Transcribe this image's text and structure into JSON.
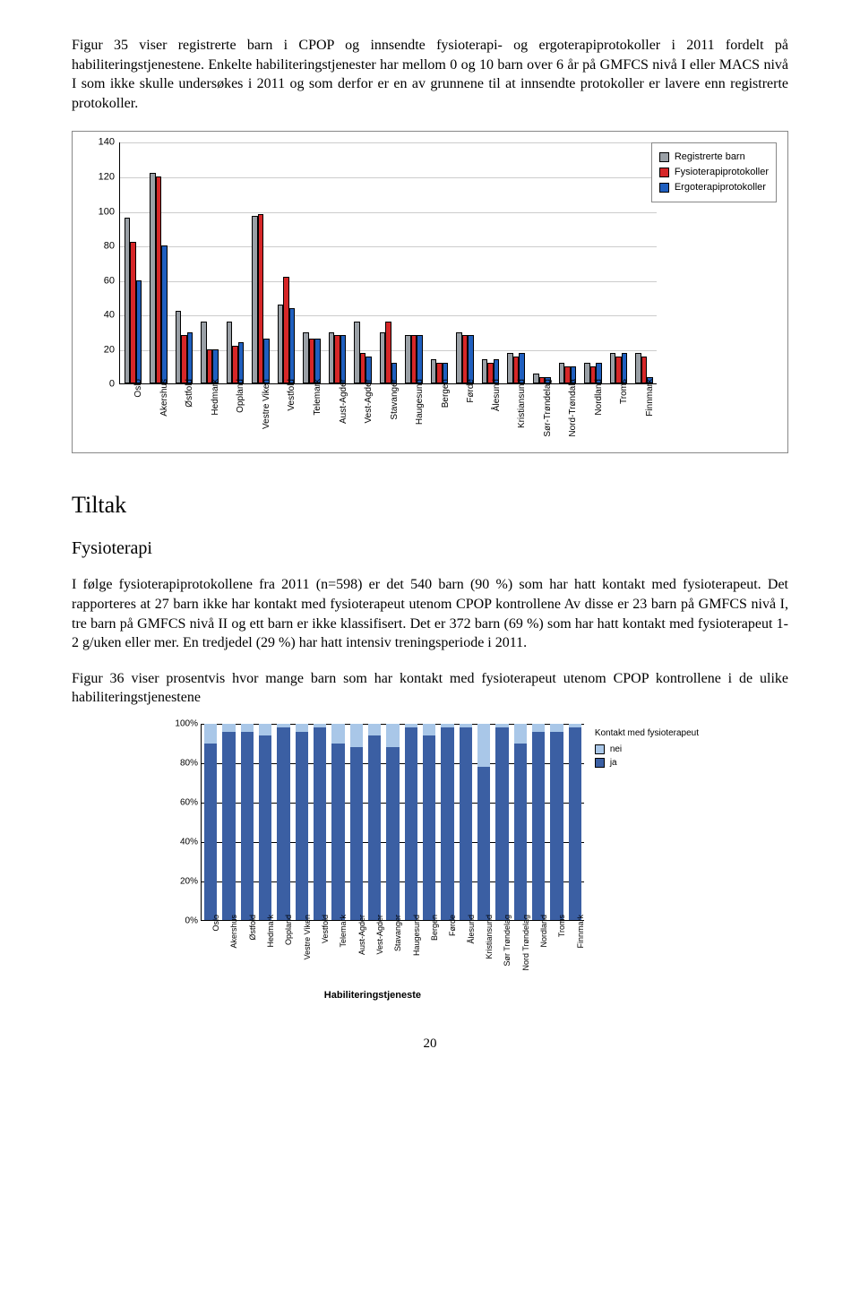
{
  "para1": "Figur 35 viser registrerte barn i CPOP og innsendte fysioterapi- og ergoterapiprotokoller i 2011 fordelt på habiliteringstjenestene. Enkelte habiliteringstjenester har mellom 0 og 10 barn over 6 år på GMFCS nivå I eller MACS nivå I som ikke skulle undersøkes i 2011 og som derfor er en av grunnene til at innsendte protokoller er lavere enn registrerte protokoller.",
  "chart1": {
    "ylim": [
      0,
      140
    ],
    "ystep": 20,
    "colors": {
      "reg": "#9aa0a6",
      "fys": "#d62728",
      "ergo": "#1f5fbf"
    },
    "legend": [
      "Registrerte barn",
      "Fysioterapiprotokoller",
      "Ergoterapiprotokoller"
    ],
    "categories": [
      "Oslo",
      "Akershus",
      "Østfold",
      "Hedmark",
      "Oppland",
      "Vestre Viken",
      "Vestfold",
      "Telemark",
      "Aust-Agder",
      "Vest-Agder",
      "Stavanger",
      "Haugesund",
      "Bergen",
      "Førde",
      "Ålesund",
      "Kristiansund",
      "Sør-Trøndelag",
      "Nord-Trøndala",
      "Nordland",
      "Troms",
      "Finnmark"
    ],
    "series": {
      "reg": [
        96,
        122,
        42,
        36,
        36,
        97,
        46,
        30,
        30,
        36,
        30,
        28,
        14,
        30,
        14,
        18,
        6,
        12,
        12,
        18,
        18
      ],
      "fys": [
        82,
        120,
        28,
        20,
        22,
        98,
        62,
        26,
        28,
        18,
        36,
        28,
        12,
        28,
        12,
        16,
        4,
        10,
        10,
        16,
        16
      ],
      "ergo": [
        60,
        80,
        30,
        20,
        24,
        26,
        44,
        26,
        28,
        16,
        12,
        28,
        12,
        28,
        14,
        18,
        4,
        10,
        12,
        18,
        4
      ]
    }
  },
  "sectionTitle": "Tiltak",
  "subTitle": "Fysioterapi",
  "para2": "I følge fysioterapiprotokollene fra 2011 (n=598) er det 540 barn (90 %) som har hatt kontakt med fysioterapeut. Det rapporteres at 27 barn ikke har kontakt med fysioterapeut utenom CPOP kontrollene Av disse er 23 barn på GMFCS nivå I, tre barn på GMFCS nivå II og ett barn er ikke klassifisert. Det er 372 barn (69 %) som har hatt kontakt med fysioterapeut 1-2 g/uken eller mer. En tredjedel (29 %) har hatt intensiv treningsperiode i 2011.",
  "para3": "Figur 36 viser prosentvis hvor mange barn som har kontakt med fysioterapeut utenom CPOP kontrollene i de ulike habiliteringstjenestene",
  "chart2": {
    "title": "Kontakt med fysioterapeut",
    "legend": [
      "nei",
      "ja"
    ],
    "colors": {
      "nei": "#a9c7e8",
      "ja": "#3b5fa3"
    },
    "xtitle": "Habiliteringstjeneste",
    "categories": [
      "Oslo",
      "Akershus",
      "Østfold",
      "Hedmark",
      "Oppland",
      "Vestre Viken",
      "Vestfold",
      "Telemark",
      "Aust-Agder",
      "Vest-Agder",
      "Stavanger",
      "Haugesund",
      "Bergen",
      "Førde",
      "Ålesund",
      "Kristiansund",
      "Sør Trøndelag",
      "Nord Trøndelag",
      "Nordland",
      "Troms",
      "Finnmark"
    ],
    "ja": [
      90,
      96,
      96,
      94,
      98,
      96,
      98,
      90,
      88,
      94,
      88,
      98,
      94,
      98,
      98,
      78,
      98,
      90,
      96,
      96,
      98
    ]
  },
  "pageNum": "20"
}
